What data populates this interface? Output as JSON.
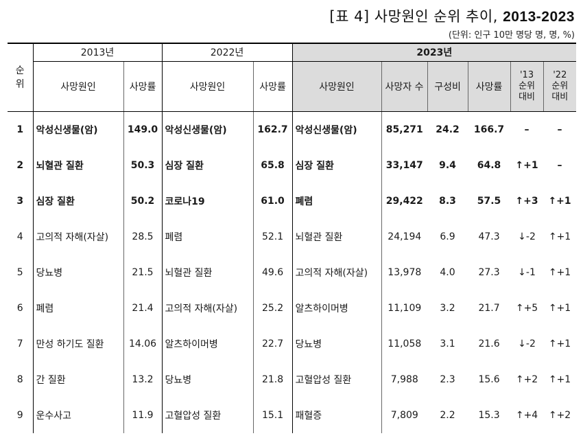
{
  "title": {
    "prefix": "[표 4] 사망원인 순위 추이, ",
    "years": "2013-2023"
  },
  "unit": "(단위: 인구 10만 명당 명, 명, %)",
  "header": {
    "rank": "순\n위",
    "y2013": "2013년",
    "y2022": "2022년",
    "y2023": "2023년",
    "cause": "사망원인",
    "rate": "사망률",
    "deaths": "사망자 수",
    "share": "구성비",
    "cmp13": "'13\n순위\n대비",
    "cmp22": "'22\n순위\n대비"
  },
  "rows": [
    {
      "rank": "1",
      "c13": "악성신생물(암)",
      "r13": "149.0",
      "c22": "악성신생물(암)",
      "r22": "162.7",
      "c23": "악성신생물(암)",
      "d23": "85,271",
      "s23": "24.2",
      "r23": "166.7",
      "v13": "–",
      "v22": "–"
    },
    {
      "rank": "2",
      "c13": "뇌혈관 질환",
      "r13": "50.3",
      "c22": "심장 질환",
      "r22": "65.8",
      "c23": "심장 질환",
      "d23": "33,147",
      "s23": "9.4",
      "r23": "64.8",
      "v13": "↑+1",
      "v22": "–"
    },
    {
      "rank": "3",
      "c13": "심장 질환",
      "r13": "50.2",
      "c22": "코로나19",
      "r22": "61.0",
      "c23": "폐렴",
      "d23": "29,422",
      "s23": "8.3",
      "r23": "57.5",
      "v13": "↑+3",
      "v22": "↑+1"
    },
    {
      "rank": "4",
      "c13": "고의적 자해(자살)",
      "r13": "28.5",
      "c22": "폐렴",
      "r22": "52.1",
      "c23": "뇌혈관 질환",
      "d23": "24,194",
      "s23": "6.9",
      "r23": "47.3",
      "v13": "↓-2",
      "v22": "↑+1"
    },
    {
      "rank": "5",
      "c13": "당뇨병",
      "r13": "21.5",
      "c22": "뇌혈관 질환",
      "r22": "49.6",
      "c23": "고의적 자해(자살)",
      "d23": "13,978",
      "s23": "4.0",
      "r23": "27.3",
      "v13": "↓-1",
      "v22": "↑+1"
    },
    {
      "rank": "6",
      "c13": "폐렴",
      "r13": "21.4",
      "c22": "고의적 자해(자살)",
      "r22": "25.2",
      "c23": "알츠하이머병",
      "d23": "11,109",
      "s23": "3.2",
      "r23": "21.7",
      "v13": "↑+5",
      "v22": "↑+1"
    },
    {
      "rank": "7",
      "c13": "만성 하기도 질환",
      "r13": "14.06",
      "c22": "알츠하이머병",
      "r22": "22.7",
      "c23": "당뇨병",
      "d23": "11,058",
      "s23": "3.1",
      "r23": "21.6",
      "v13": "↓-2",
      "v22": "↑+1"
    },
    {
      "rank": "8",
      "c13": "간 질환",
      "r13": "13.2",
      "c22": "당뇨병",
      "r22": "21.8",
      "c23": "고혈압성 질환",
      "d23": "7,988",
      "s23": "2.3",
      "r23": "15.6",
      "v13": "↑+2",
      "v22": "↑+1"
    },
    {
      "rank": "9",
      "c13": "운수사고",
      "r13": "11.9",
      "c22": "고혈압성 질환",
      "r22": "15.1",
      "c23": "패혈증",
      "d23": "7,809",
      "s23": "2.2",
      "r23": "15.3",
      "v13": "↑+4",
      "v22": "↑+2"
    }
  ]
}
